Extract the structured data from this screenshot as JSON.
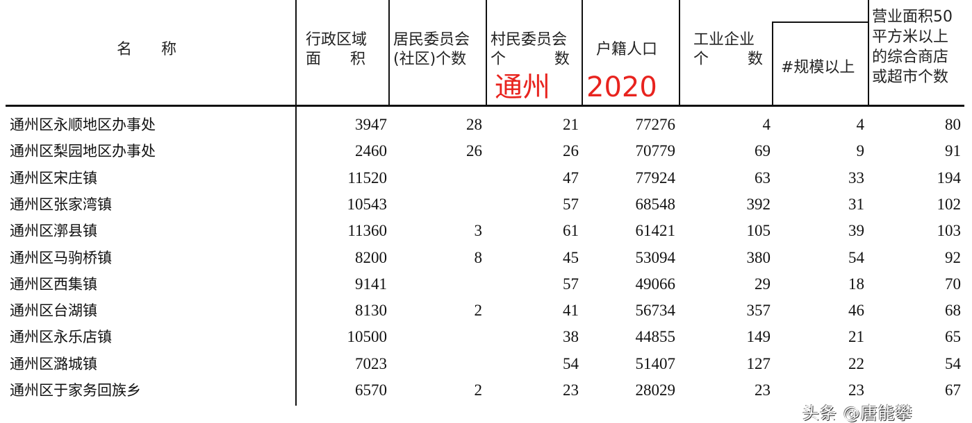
{
  "header": {
    "name": "名      称",
    "area": "行政区域\n面      积",
    "residents": "居民委员会\n(社区)个数",
    "villages": "村民委员会\n个          数",
    "population": "户籍人口",
    "industry": "工业企业\n个        数",
    "above_scale": "#规模以上",
    "stores": "营业面积50\n平方米以上\n的综合商店\n或超市个数"
  },
  "stamp": {
    "left": "通州",
    "right": "2020",
    "color": "#e8231e"
  },
  "watermark": "头条 @唐能攀",
  "rows": [
    {
      "name": "通州区永顺地区办事处",
      "area": "3947",
      "residents": "28",
      "villages": "21",
      "population": "77276",
      "industry": "4",
      "above_scale": "4",
      "stores": "80"
    },
    {
      "name": "通州区梨园地区办事处",
      "area": "2460",
      "residents": "26",
      "villages": "26",
      "population": "70779",
      "industry": "69",
      "above_scale": "9",
      "stores": "91"
    },
    {
      "name": "通州区宋庄镇",
      "area": "11520",
      "residents": "",
      "villages": "47",
      "population": "77924",
      "industry": "63",
      "above_scale": "33",
      "stores": "194"
    },
    {
      "name": "通州区张家湾镇",
      "area": "10543",
      "residents": "",
      "villages": "57",
      "population": "68548",
      "industry": "392",
      "above_scale": "31",
      "stores": "102"
    },
    {
      "name": "通州区漷县镇",
      "area": "11360",
      "residents": "3",
      "villages": "61",
      "population": "61421",
      "industry": "105",
      "above_scale": "39",
      "stores": "103"
    },
    {
      "name": "通州区马驹桥镇",
      "area": "8200",
      "residents": "8",
      "villages": "45",
      "population": "53094",
      "industry": "380",
      "above_scale": "54",
      "stores": "92"
    },
    {
      "name": "通州区西集镇",
      "area": "9141",
      "residents": "",
      "villages": "57",
      "population": "49066",
      "industry": "29",
      "above_scale": "18",
      "stores": "70"
    },
    {
      "name": "通州区台湖镇",
      "area": "8130",
      "residents": "2",
      "villages": "41",
      "population": "56734",
      "industry": "357",
      "above_scale": "46",
      "stores": "68"
    },
    {
      "name": "通州区永乐店镇",
      "area": "10500",
      "residents": "",
      "villages": "38",
      "population": "44855",
      "industry": "149",
      "above_scale": "21",
      "stores": "65"
    },
    {
      "name": "通州区潞城镇",
      "area": "7023",
      "residents": "",
      "villages": "54",
      "population": "51407",
      "industry": "127",
      "above_scale": "22",
      "stores": "54"
    },
    {
      "name": "通州区于家务回族乡",
      "area": "6570",
      "residents": "2",
      "villages": "23",
      "population": "28029",
      "industry": "23",
      "above_scale": "23",
      "stores": "67"
    }
  ]
}
